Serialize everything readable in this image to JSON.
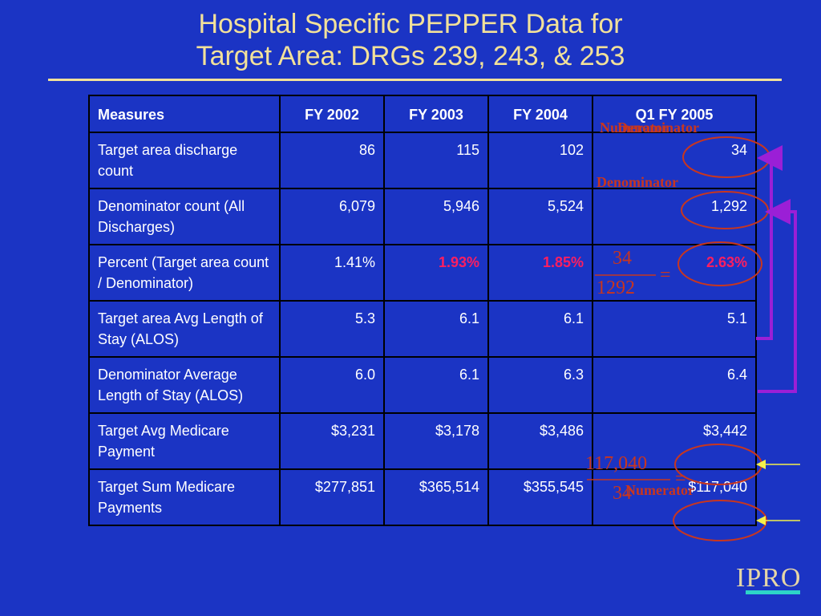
{
  "title": {
    "line1": "Hospital Specific PEPPER Data for",
    "line2": "Target Area: DRGs 239, 243, & 253"
  },
  "table": {
    "headers": [
      "Measures",
      "FY 2002",
      "FY 2003",
      "FY 2004",
      "Q1 FY 2005"
    ],
    "rows": [
      {
        "measure": "Target area discharge count",
        "values": [
          "86",
          "115",
          "102",
          "34"
        ]
      },
      {
        "measure": "Denominator count (All Discharges)",
        "values": [
          "6,079",
          "5,946",
          "5,524",
          "1,292"
        ]
      },
      {
        "measure": "Percent (Target area count / Denominator)",
        "values": [
          "1.41%",
          "1.93%",
          "1.85%",
          "2.63%"
        ]
      },
      {
        "measure": "Target area Avg Length of Stay (ALOS)",
        "values": [
          "5.3",
          "6.1",
          "6.1",
          "5.1"
        ]
      },
      {
        "measure": "Denominator Average Length of Stay (ALOS)",
        "values": [
          "6.0",
          "6.1",
          "6.3",
          "6.4"
        ]
      },
      {
        "measure": "Target Avg Medicare Payment",
        "values": [
          "$3,231",
          "$3,178",
          "$3,486",
          "$3,442"
        ]
      },
      {
        "measure": "Target Sum Medicare Payments",
        "values": [
          "$277,851",
          "$365,514",
          "$355,545",
          "$117,040"
        ]
      }
    ]
  },
  "annotations": {
    "numerator_top": "Numerator",
    "denominator_top": "Denominator",
    "denominator_mid": "Denominator",
    "numerator_bottom": "Numerator",
    "fraction1_num": "34",
    "fraction1_den": "1292",
    "fraction1_eq": "=",
    "fraction2_num": "117,040",
    "fraction2_den": "34",
    "fraction2_eq": "="
  },
  "logo": "IPRO",
  "colors": {
    "background": "#1b34c4",
    "title": "#f2e19a",
    "highlight": "#ff1e60",
    "annotation": "#c8361f",
    "bracket": "#9b1fd6",
    "arrow": "#f5f04a"
  }
}
